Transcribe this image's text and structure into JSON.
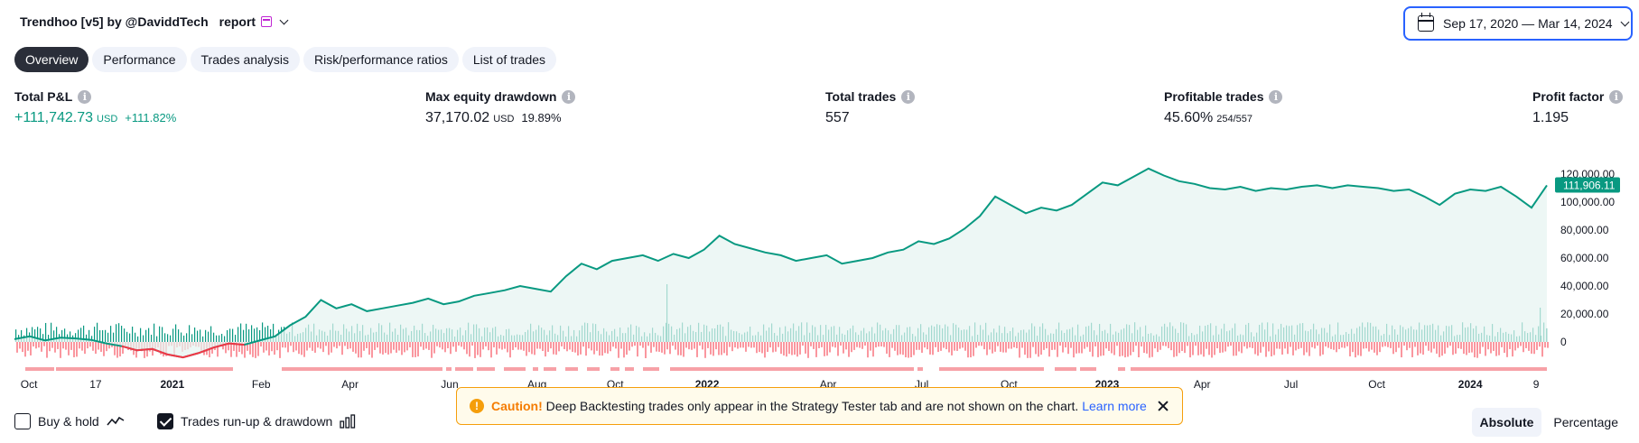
{
  "header": {
    "glyph_left": "",
    "strategy_name": "Trendhoo [v5] by @DaviddTech",
    "glyph_mid": "",
    "report_label": "report",
    "calendar_icon": "calendar-icon",
    "dropdown_icon": "chevron-down-icon"
  },
  "date_range": {
    "label": "Sep 17, 2020 — Mar 14, 2024"
  },
  "tabs": [
    {
      "label": "Overview",
      "active": true
    },
    {
      "label": "Performance",
      "active": false
    },
    {
      "label": "Trades analysis",
      "active": false
    },
    {
      "label": "Risk/performance ratios",
      "active": false
    },
    {
      "label": "List of trades",
      "active": false
    }
  ],
  "metrics": {
    "total_pnl": {
      "label": "Total P&L",
      "value": "+111,742.73",
      "unit": "USD",
      "pct": "+111.82%"
    },
    "max_drawdown": {
      "label": "Max equity drawdown",
      "value": "37,170.02",
      "unit": "USD",
      "pct": "19.89%"
    },
    "total_trades": {
      "label": "Total trades",
      "value": "557"
    },
    "profitable_trades": {
      "label": "Profitable trades",
      "value": "45.60%",
      "fraction": "254/557"
    },
    "profit_factor": {
      "label": "Profit factor",
      "value": "1.195"
    }
  },
  "chart_data": {
    "type": "line",
    "y_axis_labels": [
      "120,000.00",
      "100,000.00",
      "80,000.00",
      "60,000.00",
      "40,000.00",
      "20,000.00",
      "0"
    ],
    "y_ticks": [
      120000,
      100000,
      80000,
      60000,
      40000,
      20000,
      0
    ],
    "ylim": [
      -15000,
      126000
    ],
    "current_value_label": "111,906.11",
    "current_value": 111906.11,
    "x_tick_labels": [
      "Oct",
      "17",
      "2021",
      "Feb",
      "Apr",
      "Jun",
      "Aug",
      "Oct",
      "2022",
      "Apr",
      "Jul",
      "Oct",
      "2023",
      "Apr",
      "Jul",
      "Oct",
      "2024",
      "9"
    ],
    "x_tick_bold": [
      false,
      false,
      true,
      false,
      false,
      false,
      false,
      false,
      true,
      false,
      false,
      false,
      true,
      false,
      false,
      false,
      true,
      false
    ],
    "x_tick_positions": [
      0.004,
      0.053,
      0.103,
      0.161,
      0.219,
      0.284,
      0.341,
      0.392,
      0.452,
      0.531,
      0.592,
      0.649,
      0.713,
      0.775,
      0.833,
      0.889,
      0.95,
      0.993
    ],
    "x_range": [
      0,
      1
    ],
    "equity_series": {
      "name": "",
      "x": [
        0,
        0.01,
        0.02,
        0.03,
        0.04,
        0.05,
        0.06,
        0.07,
        0.08,
        0.09,
        0.1,
        0.11,
        0.12,
        0.13,
        0.14,
        0.15,
        0.16,
        0.17,
        0.18,
        0.19,
        0.2,
        0.21,
        0.22,
        0.23,
        0.24,
        0.25,
        0.26,
        0.27,
        0.28,
        0.29,
        0.3,
        0.31,
        0.32,
        0.33,
        0.34,
        0.35,
        0.36,
        0.37,
        0.38,
        0.39,
        0.4,
        0.41,
        0.42,
        0.43,
        0.44,
        0.45,
        0.46,
        0.47,
        0.48,
        0.49,
        0.5,
        0.51,
        0.52,
        0.53,
        0.54,
        0.55,
        0.56,
        0.57,
        0.58,
        0.59,
        0.6,
        0.61,
        0.62,
        0.63,
        0.64,
        0.65,
        0.66,
        0.67,
        0.68,
        0.69,
        0.7,
        0.71,
        0.72,
        0.73,
        0.74,
        0.75,
        0.76,
        0.77,
        0.78,
        0.79,
        0.8,
        0.81,
        0.82,
        0.83,
        0.84,
        0.85,
        0.86,
        0.87,
        0.88,
        0.89,
        0.9,
        0.91,
        0.92,
        0.93,
        0.94,
        0.95,
        0.96,
        0.97,
        0.98,
        0.99,
        1.0
      ],
      "y": [
        2000,
        4000,
        1000,
        3000,
        2500,
        1500,
        -1000,
        -3000,
        -6000,
        -5000,
        -9000,
        -11000,
        -8000,
        -4000,
        -1000,
        -2000,
        1000,
        4000,
        12000,
        18000,
        30000,
        24000,
        27000,
        22000,
        24000,
        26000,
        28000,
        31000,
        27000,
        29000,
        33000,
        35000,
        37000,
        40000,
        38000,
        36000,
        47000,
        56000,
        52000,
        58000,
        60000,
        62000,
        58000,
        63000,
        60000,
        66000,
        76000,
        70000,
        67000,
        64000,
        62000,
        58000,
        60000,
        62000,
        56000,
        58000,
        60000,
        64000,
        66000,
        72000,
        70000,
        74000,
        81000,
        90000,
        104000,
        98000,
        92000,
        96000,
        94000,
        98000,
        106000,
        114000,
        112000,
        118000,
        124000,
        119000,
        115000,
        113000,
        110000,
        109000,
        111000,
        108000,
        110000,
        109000,
        111000,
        112000,
        110000,
        112000,
        111000,
        110000,
        108000,
        109000,
        104000,
        98000,
        106000,
        109000,
        108000,
        111000,
        104000,
        96000,
        112000
      ]
    },
    "grid": false,
    "colors": {
      "equity_line": "#089981",
      "equity_fill": "#e6f4f1",
      "drawdown_line": "#f23645",
      "runup_bar": "#089981",
      "drawdown_bar": "#f7525f",
      "drawdown_strip": "#f7a1a7",
      "current_value_badge": "#089981"
    }
  },
  "footer": {
    "buy_hold": {
      "label": "Buy & hold",
      "checked": false,
      "icon": "line-chart-icon"
    },
    "runup_drawdown": {
      "label": "Trades run-up & drawdown",
      "checked": true,
      "icon": "bar-chart-icon"
    },
    "caution": {
      "title": "Caution!",
      "message": "Deep Backtesting trades only appear in the Strategy Tester tab and are not shown on the chart.",
      "link": "Learn more"
    },
    "mode": {
      "absolute": "Absolute",
      "percentage": "Percentage",
      "selected": "absolute"
    }
  }
}
